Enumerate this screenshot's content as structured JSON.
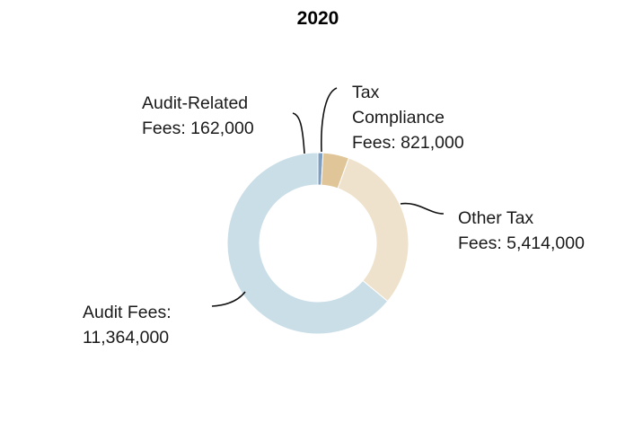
{
  "chart_data": {
    "type": "pie",
    "title": "2020",
    "slices": [
      {
        "name": "Audit Fees",
        "value": 11364000,
        "label_lines": [
          "Audit Fees:",
          "11,364,000"
        ],
        "color": "#cadee8"
      },
      {
        "name": "Audit-Related Fees",
        "value": 162000,
        "label_lines": [
          "Audit-Related",
          "Fees: 162,000"
        ],
        "color": "#7f9fc2"
      },
      {
        "name": "Tax Compliance Fees",
        "value": 821000,
        "label_lines": [
          "Tax",
          "Compliance",
          "Fees: 821,000"
        ],
        "color": "#dfc598"
      },
      {
        "name": "Other Tax Fees",
        "value": 5414000,
        "label_lines": [
          "Other Tax",
          "Fees: 5,414,000"
        ],
        "color": "#efe2cc"
      }
    ]
  }
}
